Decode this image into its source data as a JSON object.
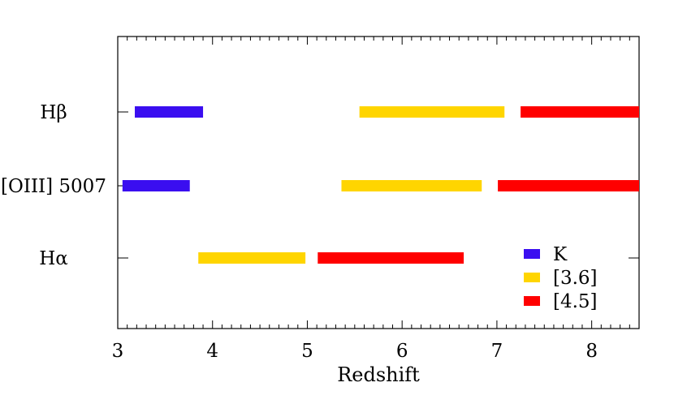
{
  "chart_data": {
    "type": "bar",
    "orientation": "horizontal-range",
    "xlabel": "Redshift",
    "xlim": [
      3,
      8.5
    ],
    "x_ticks": [
      3,
      4,
      5,
      6,
      7,
      8
    ],
    "categories": [
      "Hβ",
      "[OIII] 5007",
      "Hα"
    ],
    "series": [
      {
        "name": "K",
        "color": "#3a0ef0",
        "ranges": [
          {
            "category": "Hβ",
            "start": 3.18,
            "end": 3.9
          },
          {
            "category": "[OIII] 5007",
            "start": 3.05,
            "end": 3.76
          }
        ]
      },
      {
        "name": "[3.6]",
        "color": "#ffd500",
        "ranges": [
          {
            "category": "Hβ",
            "start": 5.55,
            "end": 7.08
          },
          {
            "category": "[OIII] 5007",
            "start": 5.36,
            "end": 6.84
          },
          {
            "category": "Hα",
            "start": 3.85,
            "end": 4.98
          }
        ]
      },
      {
        "name": "[4.5]",
        "color": "#ff0000",
        "ranges": [
          {
            "category": "Hβ",
            "start": 7.25,
            "end": 8.5
          },
          {
            "category": "[OIII] 5007",
            "start": 7.01,
            "end": 8.5
          },
          {
            "category": "Hα",
            "start": 5.11,
            "end": 6.65
          }
        ]
      }
    ],
    "legend_position": "bottom-right",
    "grid": false
  }
}
